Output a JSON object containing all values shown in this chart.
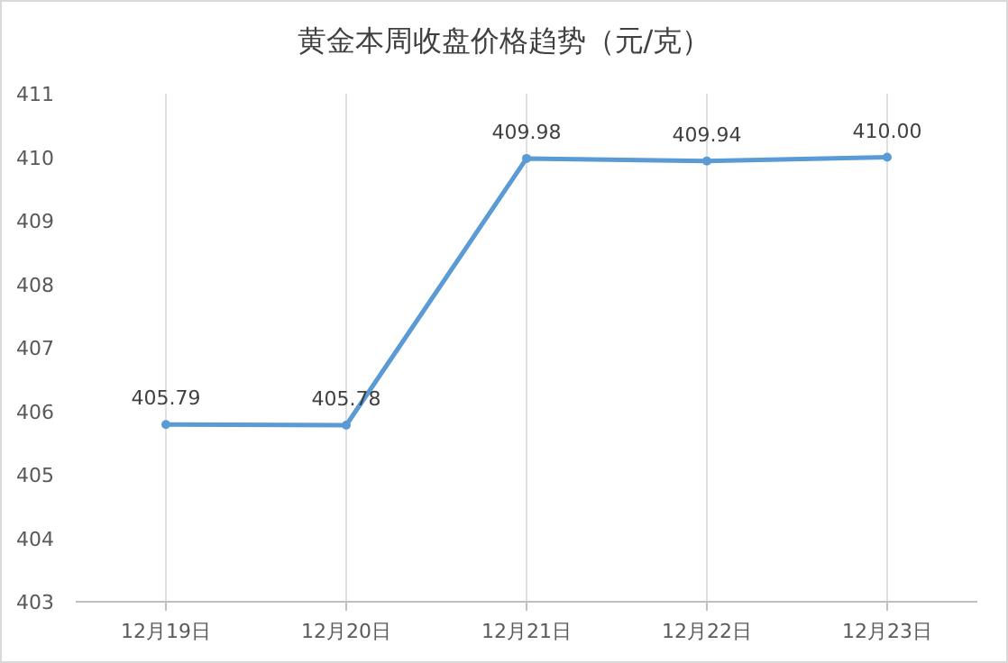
{
  "chart_data": {
    "type": "line",
    "title": "黄金本周收盘价格趋势（元/克）",
    "categories": [
      "12月19日",
      "12月20日",
      "12月21日",
      "12月22日",
      "12月23日"
    ],
    "series": [
      {
        "color": "#5b9bd5",
        "values": [
          405.79,
          405.78,
          409.98,
          409.94,
          410.0
        ]
      }
    ],
    "value_labels": [
      "405.79",
      "405.78",
      "409.98",
      "409.94",
      "410.00"
    ],
    "ylim": [
      403,
      411
    ],
    "yticks": [
      403,
      404,
      405,
      406,
      407,
      408,
      409,
      410,
      411
    ],
    "grid": "x",
    "marker": "circle",
    "line_style": "solid"
  }
}
